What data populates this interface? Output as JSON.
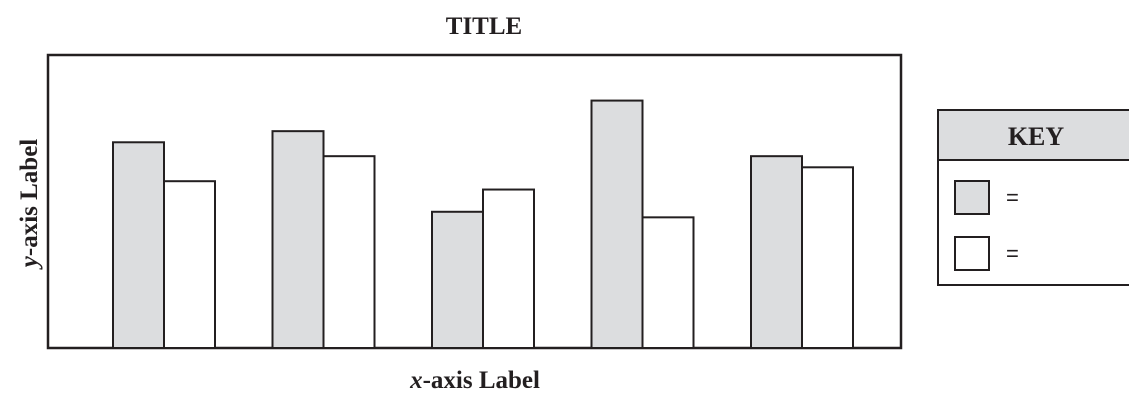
{
  "chart_data": {
    "type": "bar",
    "title": "TITLE",
    "xlabel_italic": "x",
    "xlabel_rest": "-axis Label",
    "ylabel_italic": "y",
    "ylabel_rest": "-axis Label",
    "categories": [
      "",
      "",
      "",
      "",
      ""
    ],
    "series": [
      {
        "values": [
          0.74,
          0.78,
          0.49,
          0.89,
          0.69
        ]
      },
      {
        "values": [
          0.6,
          0.69,
          0.57,
          0.47,
          0.65
        ]
      }
    ],
    "ylim": [
      0,
      1
    ],
    "grid": false,
    "legend": {
      "title": "KEY",
      "placement": "right",
      "entries": [
        "=",
        "="
      ]
    }
  },
  "colors": {
    "series_fills": [
      "#dcdddf",
      "#ffffff"
    ],
    "stroke": "#231f20",
    "key_header_fill": "#dcdddf"
  }
}
